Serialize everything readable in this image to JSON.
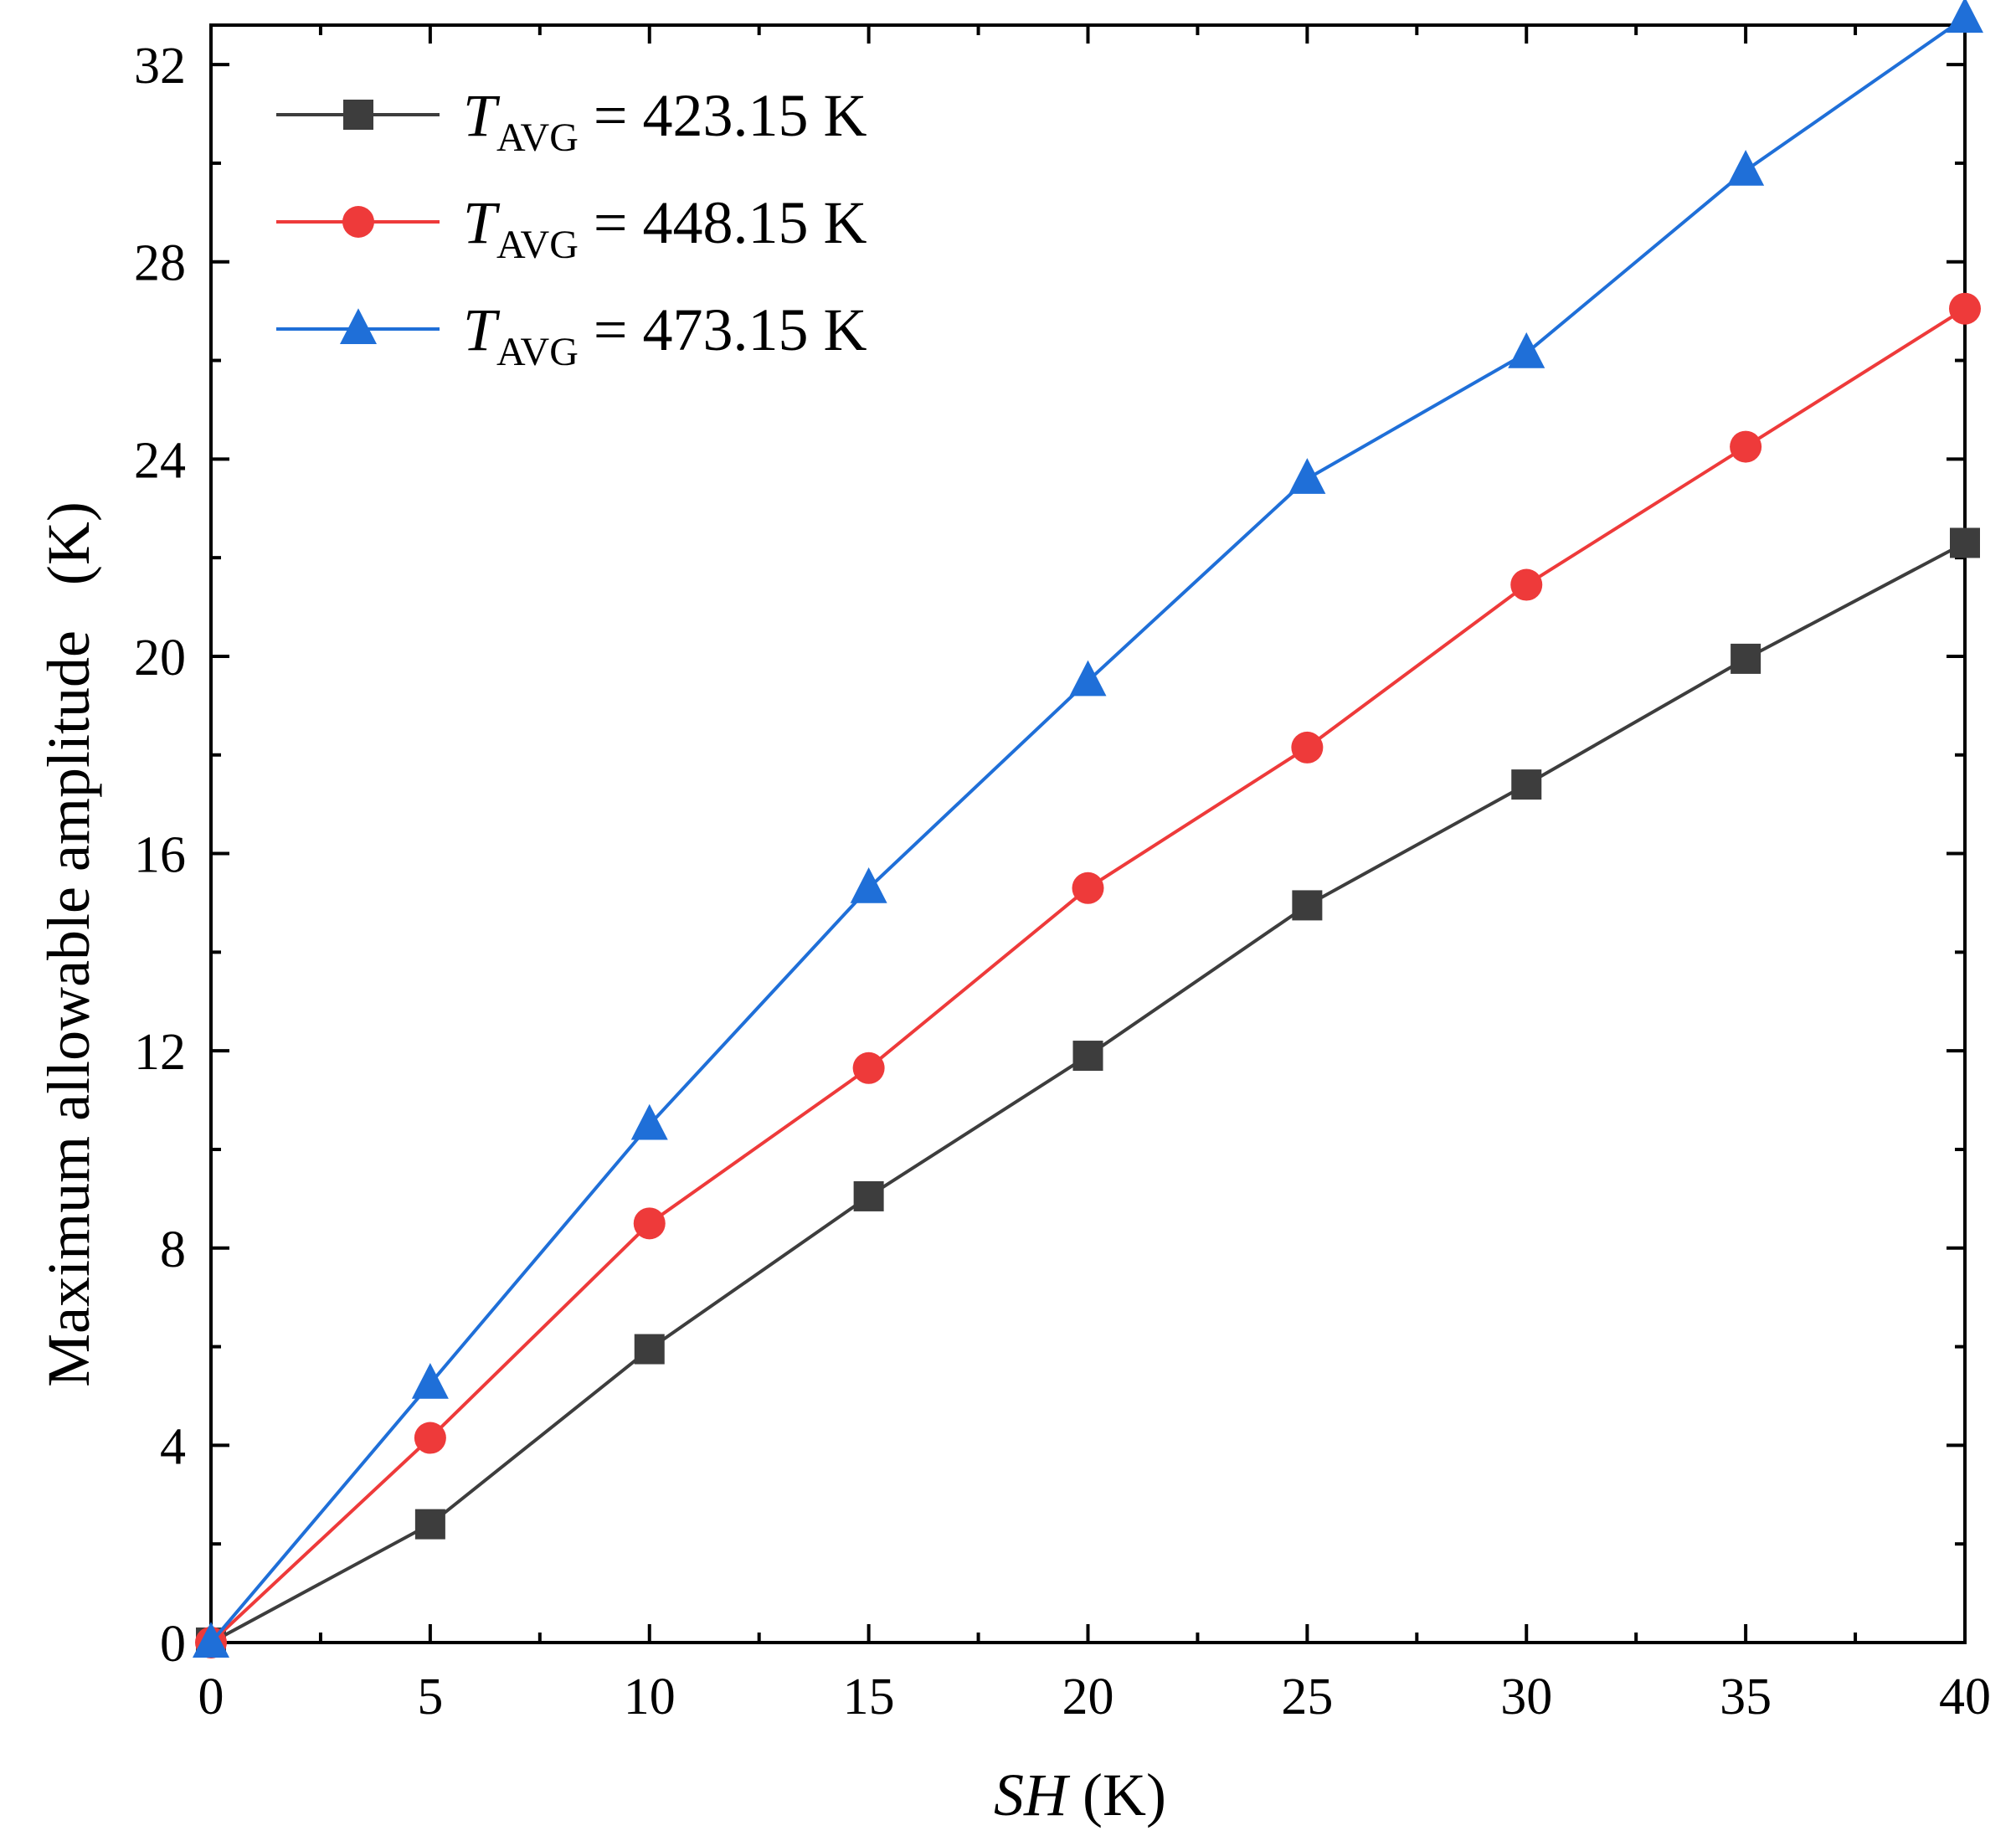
{
  "chart_data": {
    "type": "line",
    "title": "",
    "xlabel": {
      "italic_part": "SH",
      "unit": " (K)"
    },
    "ylabel": "Maximum allowable amplitude   (K)",
    "xlim": [
      0,
      40
    ],
    "ylim": [
      0,
      32.8
    ],
    "x_ticks": [
      0,
      5,
      10,
      15,
      20,
      25,
      30,
      35,
      40
    ],
    "y_ticks": [
      0,
      4,
      8,
      12,
      16,
      20,
      24,
      28,
      32
    ],
    "x_tick_labels": [
      "0",
      "5",
      "10",
      "15",
      "20",
      "25",
      "30",
      "35",
      "40"
    ],
    "y_tick_labels": [
      "0",
      "4",
      "8",
      "12",
      "16",
      "20",
      "24",
      "28",
      "32"
    ],
    "x": [
      0,
      5,
      10,
      15,
      20,
      25,
      30,
      35,
      40
    ],
    "grid": false,
    "legend_position": "top-left",
    "series": [
      {
        "name": "T_AVG = 423.15 K",
        "legend": {
          "symbol": "T",
          "subscript": "AVG",
          "value": " = 423.15 K"
        },
        "marker": "square",
        "color": "#3d3d3d",
        "values": [
          0,
          2.4,
          5.95,
          9.05,
          11.9,
          14.95,
          17.4,
          19.95,
          22.3
        ]
      },
      {
        "name": "T_AVG = 448.15 K",
        "legend": {
          "symbol": "T",
          "subscript": "AVG",
          "value": " = 448.15 K"
        },
        "marker": "circle",
        "color": "#ee3a3a",
        "values": [
          0,
          4.15,
          8.5,
          11.65,
          15.3,
          18.15,
          21.45,
          24.25,
          27.05
        ]
      },
      {
        "name": "T_AVG = 473.15 K",
        "legend": {
          "symbol": "T",
          "subscript": "AVG",
          "value": " = 473.15 K"
        },
        "marker": "triangle",
        "color": "#1f6fd8",
        "values": [
          0,
          5.25,
          10.5,
          15.3,
          19.5,
          23.6,
          26.15,
          29.85,
          32.95
        ]
      }
    ]
  }
}
